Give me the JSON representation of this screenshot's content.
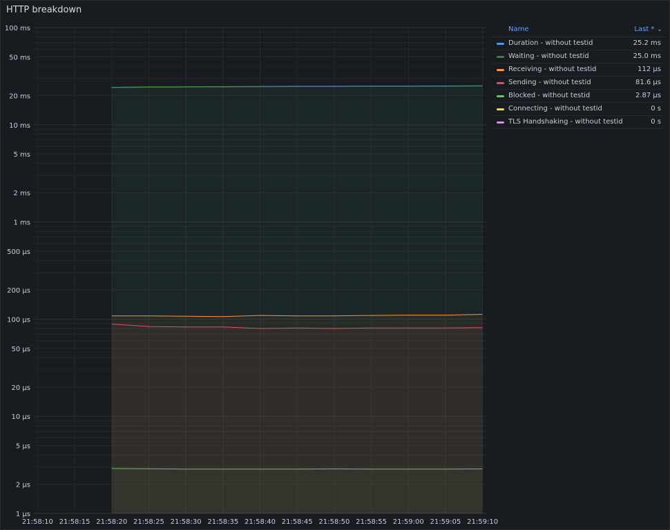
{
  "panel": {
    "title": "HTTP breakdown"
  },
  "legend": {
    "name_header": "Name",
    "last_header": "Last * ⌄",
    "items": [
      {
        "name": "Duration - without testid",
        "last": "25.2 ms",
        "color": "#5794f2"
      },
      {
        "name": "Waiting - without testid",
        "last": "25.0 ms",
        "color": "#37872d"
      },
      {
        "name": "Receiving - without testid",
        "last": "112 µs",
        "color": "#ff9830"
      },
      {
        "name": "Sending - without testid",
        "last": "81.6 µs",
        "color": "#f2495c"
      },
      {
        "name": "Blocked - without testid",
        "last": "2.87 µs",
        "color": "#73bf69"
      },
      {
        "name": "Connecting - without testid",
        "last": "0 s",
        "color": "#fade2a"
      },
      {
        "name": "TLS Handshaking - without testid",
        "last": "0 s",
        "color": "#ca95e5"
      }
    ]
  },
  "chart_data": {
    "type": "line",
    "y_scale": "log10",
    "y_unit": "ms",
    "ylim": [
      0.001,
      100
    ],
    "y_ticks": [
      {
        "value": 100,
        "label": "100 ms"
      },
      {
        "value": 50,
        "label": "50 ms"
      },
      {
        "value": 20,
        "label": "20 ms"
      },
      {
        "value": 10,
        "label": "10 ms"
      },
      {
        "value": 5,
        "label": "5 ms"
      },
      {
        "value": 2,
        "label": "2 ms"
      },
      {
        "value": 1,
        "label": "1 ms"
      },
      {
        "value": 0.5,
        "label": "500 µs"
      },
      {
        "value": 0.2,
        "label": "200 µs"
      },
      {
        "value": 0.1,
        "label": "100 µs"
      },
      {
        "value": 0.05,
        "label": "50 µs"
      },
      {
        "value": 0.02,
        "label": "20 µs"
      },
      {
        "value": 0.01,
        "label": "10 µs"
      },
      {
        "value": 0.005,
        "label": "5 µs"
      },
      {
        "value": 0.002,
        "label": "2 µs"
      },
      {
        "value": 0.001,
        "label": "1 µs"
      }
    ],
    "x_range": [
      "21:58:09.5",
      "21:59:10.5"
    ],
    "x_tick_labels": [
      "21:58:10",
      "21:58:15",
      "21:58:20",
      "21:58:25",
      "21:58:30",
      "21:58:35",
      "21:58:40",
      "21:58:45",
      "21:58:50",
      "21:58:55",
      "21:59:00",
      "21:59:05",
      "21:59:10"
    ],
    "x": [
      "21:58:20",
      "21:58:25",
      "21:58:30",
      "21:58:35",
      "21:58:40",
      "21:58:45",
      "21:58:50",
      "21:58:55",
      "21:59:00",
      "21:59:05",
      "21:59:10"
    ],
    "series": [
      {
        "name": "Duration - without testid",
        "color": "#5794f2",
        "values": [
          24.3,
          24.5,
          24.6,
          24.7,
          24.8,
          24.9,
          24.9,
          25.0,
          25.0,
          25.1,
          25.2
        ]
      },
      {
        "name": "Waiting - without testid",
        "color": "#37872d",
        "values": [
          24.1,
          24.3,
          24.4,
          24.5,
          24.6,
          24.7,
          24.7,
          24.8,
          24.8,
          24.9,
          25.0
        ]
      },
      {
        "name": "Receiving - without testid",
        "color": "#ff9830",
        "values": [
          0.108,
          0.108,
          0.107,
          0.106,
          0.109,
          0.108,
          0.108,
          0.109,
          0.11,
          0.11,
          0.112
        ]
      },
      {
        "name": "Sending - without testid",
        "color": "#f2495c",
        "values": [
          0.089,
          0.084,
          0.083,
          0.083,
          0.08,
          0.081,
          0.08,
          0.081,
          0.081,
          0.081,
          0.0816
        ]
      },
      {
        "name": "Blocked - without testid",
        "color": "#73bf69",
        "values": [
          0.0029,
          0.00288,
          0.00286,
          0.00286,
          0.00286,
          0.00286,
          0.00287,
          0.00286,
          0.00286,
          0.00286,
          0.00287
        ]
      }
    ],
    "legend_placement": "right",
    "grid": true
  }
}
